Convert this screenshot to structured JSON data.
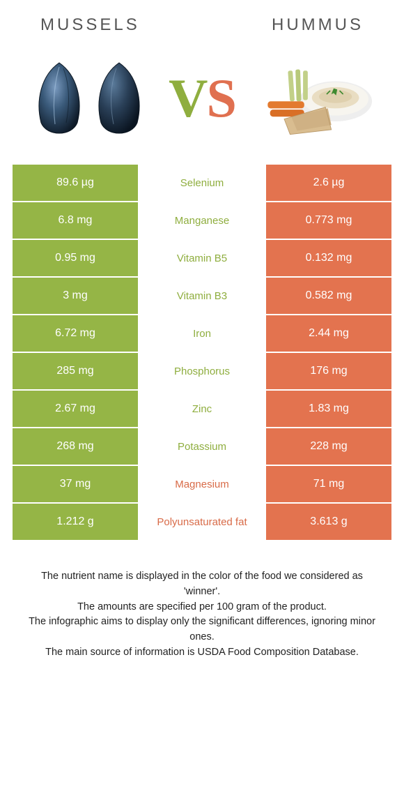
{
  "header": {
    "left_title": "Mussels",
    "right_title": "Hummus",
    "vs_v": "V",
    "vs_s": "S"
  },
  "colors": {
    "left": "#95b546",
    "right": "#e3734f",
    "left_text": "#8fae3f",
    "right_text": "#d86b48",
    "mussel_dark": "#1a2838",
    "mussel_light": "#4a6a8a",
    "plate_rim": "#e8e8e8",
    "plate_inner": "#f5f5f0",
    "hummus": "#e8dcc0",
    "carrot": "#e37a2f",
    "celery": "#b8c97a",
    "pita": "#d4b888",
    "parsley": "#3a7a2a"
  },
  "rows": [
    {
      "left": "89.6 µg",
      "name": "Selenium",
      "right": "2.6 µg",
      "winner": "left"
    },
    {
      "left": "6.8 mg",
      "name": "Manganese",
      "right": "0.773 mg",
      "winner": "left"
    },
    {
      "left": "0.95 mg",
      "name": "Vitamin B5",
      "right": "0.132 mg",
      "winner": "left"
    },
    {
      "left": "3 mg",
      "name": "Vitamin B3",
      "right": "0.582 mg",
      "winner": "left"
    },
    {
      "left": "6.72 mg",
      "name": "Iron",
      "right": "2.44 mg",
      "winner": "left"
    },
    {
      "left": "285 mg",
      "name": "Phosphorus",
      "right": "176 mg",
      "winner": "left"
    },
    {
      "left": "2.67 mg",
      "name": "Zinc",
      "right": "1.83 mg",
      "winner": "left"
    },
    {
      "left": "268 mg",
      "name": "Potassium",
      "right": "228 mg",
      "winner": "left"
    },
    {
      "left": "37 mg",
      "name": "Magnesium",
      "right": "71 mg",
      "winner": "right"
    },
    {
      "left": "1.212 g",
      "name": "Polyunsaturated fat",
      "right": "3.613 g",
      "winner": "right"
    }
  ],
  "footer": {
    "line1": "The nutrient name is displayed in the color of the food we considered as 'winner'.",
    "line2": "The amounts are specified per 100 gram of the product.",
    "line3": "The infographic aims to display only the significant differences, ignoring minor ones.",
    "line4": "The main source of information is USDA Food Composition Database."
  }
}
